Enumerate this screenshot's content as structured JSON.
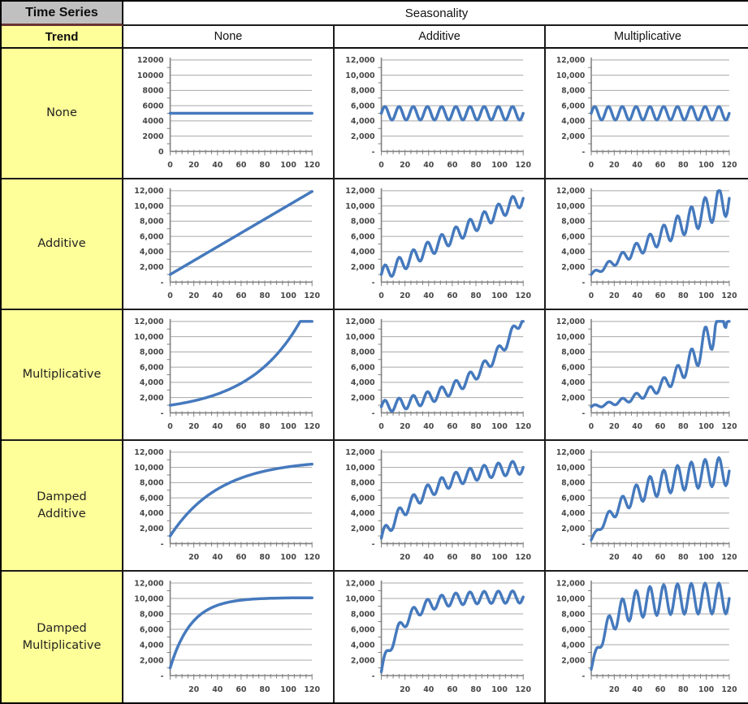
{
  "table": {
    "corner_top": "Time Series",
    "corner_bottom": "Trend",
    "col_group_header": "Seasonality",
    "col_headers": [
      "None",
      "Additive",
      "Multiplicative"
    ],
    "row_headers": [
      "None",
      "Additive",
      "Multiplicative",
      "Damped\nAdditive",
      "Damped\nMultiplicative"
    ]
  },
  "colors": {
    "line": "#4579bd",
    "gridline": "#a8a8a8",
    "axis": "#808080",
    "tick_text": "#474747",
    "row_header_bg": "#ffff99",
    "corner_bg": "#c0c0c0",
    "maroon_divider": "#6b3434",
    "table_border": "#000000"
  },
  "axes": {
    "y_labels_comma": [
      "12,000",
      "10,000",
      "8,000",
      "6,000",
      "4,000",
      "2,000",
      "-"
    ],
    "y_labels_plain": [
      "12000",
      "10000",
      "8000",
      "6000",
      "4000",
      "2000",
      "0"
    ],
    "x_labels_full": [
      "0",
      "20",
      "40",
      "60",
      "80",
      "100",
      "120"
    ],
    "x_labels_cut": [
      "20",
      "40",
      "60",
      "80",
      "100",
      "120"
    ]
  },
  "chart_data": [
    {
      "row": "None",
      "col": "None",
      "type": "line",
      "xlim": [
        0,
        120
      ],
      "ylim": [
        0,
        12000
      ],
      "x_ticks": [
        0,
        20,
        40,
        60,
        80,
        100,
        120
      ],
      "y_ticks": [
        0,
        2000,
        4000,
        6000,
        8000,
        10000,
        12000
      ],
      "y_label_style": "plain",
      "x_label_style": "full",
      "grid": true,
      "model": {
        "trend": "flat",
        "level": 5000,
        "seasonality": "none",
        "period": 12
      }
    },
    {
      "row": "None",
      "col": "Additive",
      "type": "line",
      "xlim": [
        0,
        120
      ],
      "ylim": [
        0,
        12000
      ],
      "x_ticks": [
        0,
        20,
        40,
        60,
        80,
        100,
        120
      ],
      "y_ticks": [
        0,
        2000,
        4000,
        6000,
        8000,
        10000,
        12000
      ],
      "y_label_style": "comma",
      "x_label_style": "full",
      "grid": true,
      "model": {
        "trend": "flat",
        "level": 5000,
        "seasonality": "additive",
        "amplitude": 900,
        "period": 12
      }
    },
    {
      "row": "None",
      "col": "Multiplicative",
      "type": "line",
      "xlim": [
        0,
        120
      ],
      "ylim": [
        0,
        12000
      ],
      "x_ticks": [
        0,
        20,
        40,
        60,
        80,
        100,
        120
      ],
      "y_ticks": [
        0,
        2000,
        4000,
        6000,
        8000,
        10000,
        12000
      ],
      "y_label_style": "comma",
      "x_label_style": "full",
      "grid": true,
      "model": {
        "trend": "flat",
        "level": 5000,
        "seasonality": "multiplicative",
        "fraction": 0.18,
        "period": 12
      }
    },
    {
      "row": "Additive",
      "col": "None",
      "type": "line",
      "xlim": [
        0,
        120
      ],
      "ylim": [
        0,
        12000
      ],
      "x_ticks": [
        0,
        20,
        40,
        60,
        80,
        100,
        120
      ],
      "y_ticks": [
        0,
        2000,
        4000,
        6000,
        8000,
        10000,
        12000
      ],
      "y_label_style": "comma",
      "x_label_style": "full",
      "grid": true,
      "model": {
        "trend": "linear",
        "start": 1000,
        "end": 11900,
        "seasonality": "none",
        "period": 12
      }
    },
    {
      "row": "Additive",
      "col": "Additive",
      "type": "line",
      "xlim": [
        0,
        120
      ],
      "ylim": [
        0,
        12000
      ],
      "x_ticks": [
        0,
        20,
        40,
        60,
        80,
        100,
        120
      ],
      "y_ticks": [
        0,
        2000,
        4000,
        6000,
        8000,
        10000,
        12000
      ],
      "y_label_style": "comma",
      "x_label_style": "full",
      "grid": true,
      "model": {
        "trend": "linear",
        "start": 1000,
        "end": 11000,
        "seasonality": "additive",
        "amplitude": 1000,
        "period": 12
      }
    },
    {
      "row": "Additive",
      "col": "Multiplicative",
      "type": "line",
      "xlim": [
        0,
        120
      ],
      "ylim": [
        0,
        12000
      ],
      "x_ticks": [
        0,
        20,
        40,
        60,
        80,
        100,
        120
      ],
      "y_ticks": [
        0,
        2000,
        4000,
        6000,
        8000,
        10000,
        12000
      ],
      "y_label_style": "comma",
      "x_label_style": "full",
      "grid": true,
      "model": {
        "trend": "linear",
        "start": 1000,
        "end": 11000,
        "seasonality": "multiplicative",
        "fraction": 0.2,
        "period": 12
      }
    },
    {
      "row": "Multiplicative",
      "col": "None",
      "type": "line",
      "xlim": [
        0,
        120
      ],
      "ylim": [
        0,
        12000
      ],
      "x_ticks": [
        0,
        20,
        40,
        60,
        80,
        100,
        120
      ],
      "y_ticks": [
        0,
        2000,
        4000,
        6000,
        8000,
        10000,
        12000
      ],
      "y_label_style": "comma",
      "x_label_style": "full",
      "grid": true,
      "model": {
        "trend": "exponential",
        "start": 1000,
        "reach": 12000,
        "reach_at": 110,
        "seasonality": "none",
        "period": 12
      }
    },
    {
      "row": "Multiplicative",
      "col": "Additive",
      "type": "line",
      "xlim": [
        0,
        120
      ],
      "ylim": [
        0,
        12000
      ],
      "x_ticks": [
        0,
        20,
        40,
        60,
        80,
        100,
        120
      ],
      "y_ticks": [
        0,
        2000,
        4000,
        6000,
        8000,
        10000,
        12000
      ],
      "y_label_style": "comma",
      "x_label_style": "full",
      "grid": true,
      "model": {
        "trend": "exponential",
        "start": 800,
        "reach": 11500,
        "reach_at": 115,
        "seasonality": "additive",
        "amplitude": 800,
        "period": 12
      }
    },
    {
      "row": "Multiplicative",
      "col": "Multiplicative",
      "type": "line",
      "xlim": [
        0,
        120
      ],
      "ylim": [
        0,
        12000
      ],
      "x_ticks": [
        0,
        20,
        40,
        60,
        80,
        100,
        120
      ],
      "y_ticks": [
        0,
        2000,
        4000,
        6000,
        8000,
        10000,
        12000
      ],
      "y_label_style": "comma",
      "x_label_style": "full",
      "grid": true,
      "model": {
        "trend": "exponential",
        "start": 800,
        "reach": 11500,
        "reach_at": 108,
        "seasonality": "multiplicative",
        "fraction": 0.22,
        "period": 12
      }
    },
    {
      "row": "Damped Additive",
      "col": "None",
      "type": "line",
      "xlim": [
        0,
        120
      ],
      "ylim": [
        0,
        12000
      ],
      "x_ticks": [
        20,
        40,
        60,
        80,
        100,
        120
      ],
      "y_ticks": [
        0,
        2000,
        4000,
        6000,
        8000,
        10000,
        12000
      ],
      "y_label_style": "comma",
      "x_label_style": "cut",
      "grid": true,
      "model": {
        "trend": "damped",
        "start": 1000,
        "asymptote": 11000,
        "tau": 42,
        "seasonality": "none",
        "period": 12
      }
    },
    {
      "row": "Damped Additive",
      "col": "Additive",
      "type": "line",
      "xlim": [
        0,
        120
      ],
      "ylim": [
        0,
        12000
      ],
      "x_ticks": [
        20,
        40,
        60,
        80,
        100,
        120
      ],
      "y_ticks": [
        0,
        2000,
        4000,
        6000,
        8000,
        10000,
        12000
      ],
      "y_label_style": "comma",
      "x_label_style": "cut",
      "grid": true,
      "model": {
        "trend": "damped",
        "start": 700,
        "asymptote": 10500,
        "tau": 40,
        "seasonality": "additive",
        "amplitude": 900,
        "period": 12
      }
    },
    {
      "row": "Damped Additive",
      "col": "Multiplicative",
      "type": "line",
      "xlim": [
        0,
        120
      ],
      "ylim": [
        0,
        12000
      ],
      "x_ticks": [
        20,
        40,
        60,
        80,
        100,
        120
      ],
      "y_ticks": [
        0,
        2000,
        4000,
        6000,
        8000,
        10000,
        12000
      ],
      "y_label_style": "comma",
      "x_label_style": "cut",
      "grid": true,
      "model": {
        "trend": "damped",
        "start": 500,
        "asymptote": 10000,
        "tau": 40,
        "seasonality": "multiplicative",
        "fraction": 0.2,
        "period": 12
      }
    },
    {
      "row": "Damped Multiplicative",
      "col": "None",
      "type": "line",
      "xlim": [
        0,
        120
      ],
      "ylim": [
        0,
        12000
      ],
      "x_ticks": [
        20,
        40,
        60,
        80,
        100,
        120
      ],
      "y_ticks": [
        0,
        2000,
        4000,
        6000,
        8000,
        10000,
        12000
      ],
      "y_label_style": "comma",
      "x_label_style": "cut",
      "grid": true,
      "model": {
        "trend": "damped",
        "start": 1000,
        "asymptote": 10100,
        "tau": 18,
        "seasonality": "none",
        "period": 12
      }
    },
    {
      "row": "Damped Multiplicative",
      "col": "Additive",
      "type": "line",
      "xlim": [
        0,
        120
      ],
      "ylim": [
        0,
        12000
      ],
      "x_ticks": [
        20,
        40,
        60,
        80,
        100,
        120
      ],
      "y_ticks": [
        0,
        2000,
        4000,
        6000,
        8000,
        10000,
        12000
      ],
      "y_label_style": "comma",
      "x_label_style": "cut",
      "grid": true,
      "model": {
        "trend": "damped",
        "start": 500,
        "asymptote": 10200,
        "tau": 18,
        "seasonality": "additive",
        "amplitude": 800,
        "period": 12
      }
    },
    {
      "row": "Damped Multiplicative",
      "col": "Multiplicative",
      "type": "line",
      "xlim": [
        0,
        120
      ],
      "ylim": [
        0,
        12000
      ],
      "x_ticks": [
        20,
        40,
        60,
        80,
        100,
        120
      ],
      "y_ticks": [
        0,
        2000,
        4000,
        6000,
        8000,
        10000,
        12000
      ],
      "y_label_style": "comma",
      "x_label_style": "cut",
      "grid": true,
      "model": {
        "trend": "damped",
        "start": 800,
        "asymptote": 10000,
        "tau": 16,
        "seasonality": "multiplicative",
        "fraction": 0.2,
        "period": 12
      }
    }
  ]
}
